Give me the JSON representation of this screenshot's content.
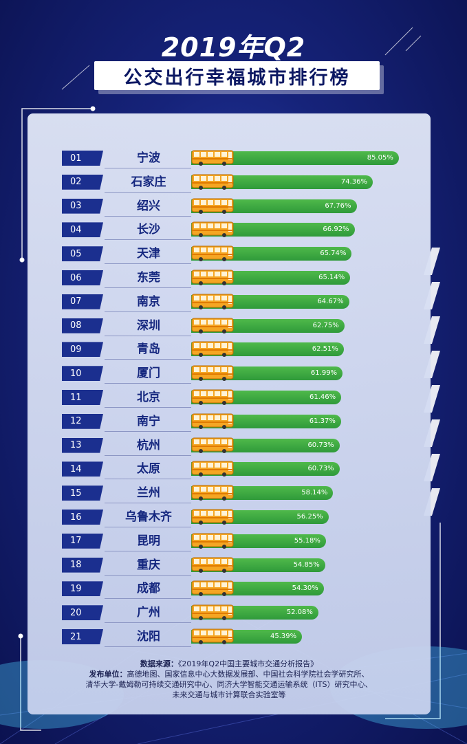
{
  "header": {
    "title": "2019年Q2",
    "subtitle": "公交出行幸福城市排行榜"
  },
  "colors": {
    "background": "#16237a",
    "rank_tab": "#1b2f8f",
    "bar": "#3aa63f",
    "city_text": "#15277f",
    "bus_body": "#f5a623"
  },
  "icons": {
    "bus": "bus-icon"
  },
  "chart_data": {
    "type": "bar",
    "orientation": "horizontal",
    "xlim": [
      0,
      100
    ],
    "ranks": [
      "01",
      "02",
      "03",
      "04",
      "05",
      "06",
      "07",
      "08",
      "09",
      "10",
      "11",
      "12",
      "13",
      "14",
      "15",
      "16",
      "17",
      "18",
      "19",
      "20",
      "21"
    ],
    "categories": [
      "宁波",
      "石家庄",
      "绍兴",
      "长沙",
      "天津",
      "东莞",
      "南京",
      "深圳",
      "青岛",
      "厦门",
      "北京",
      "南宁",
      "杭州",
      "太原",
      "兰州",
      "乌鲁木齐",
      "昆明",
      "重庆",
      "成都",
      "广州",
      "沈阳"
    ],
    "values": [
      85.05,
      74.36,
      67.76,
      66.92,
      65.74,
      65.14,
      64.67,
      62.75,
      62.51,
      61.99,
      61.46,
      61.37,
      60.73,
      60.73,
      58.14,
      56.25,
      55.18,
      54.85,
      54.3,
      52.08,
      45.39
    ],
    "value_labels": [
      "85.05%",
      "74.36%",
      "67.76%",
      "66.92%",
      "65.74%",
      "65.14%",
      "64.67%",
      "62.75%",
      "62.51%",
      "61.99%",
      "61.46%",
      "61.37%",
      "60.73%",
      "60.73%",
      "58.14%",
      "56.25%",
      "55.18%",
      "54.85%",
      "54.30%",
      "52.08%",
      "45.39%"
    ]
  },
  "footer": {
    "source_label": "数据来源：",
    "source_text": "《2019年Q2中国主要城市交通分析报告》",
    "publisher_label": "发布单位：",
    "publisher_line1": "高德地图、国家信息中心大数据发展部、中国社会科学院社会学研究所、",
    "publisher_line2": "清华大学-戴姆勒可持续交通研究中心、同济大学智能交通运输系统（ITS）研究中心、",
    "publisher_line3": "未来交通与城市计算联合实验室等"
  }
}
